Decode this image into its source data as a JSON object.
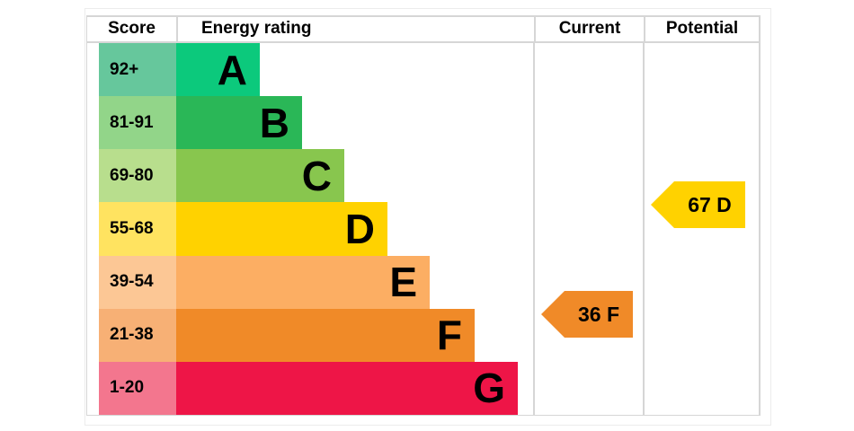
{
  "header": {
    "score": "Score",
    "energy_rating": "Energy rating",
    "current": "Current",
    "potential": "Potential"
  },
  "bands": [
    {
      "score": "92+",
      "grade": "A",
      "bar_color": "#0cc97c",
      "score_cell_color": "#66c79c"
    },
    {
      "score": "81-91",
      "grade": "B",
      "bar_color": "#2ab757",
      "score_cell_color": "#92d589"
    },
    {
      "score": "69-80",
      "grade": "C",
      "bar_color": "#88c64e",
      "score_cell_color": "#b8de8d"
    },
    {
      "score": "55-68",
      "grade": "D",
      "bar_color": "#ffd200",
      "score_cell_color": "#ffe360"
    },
    {
      "score": "39-54",
      "grade": "E",
      "bar_color": "#fcae63",
      "score_cell_color": "#fcc795"
    },
    {
      "score": "21-38",
      "grade": "F",
      "bar_color": "#f08a28",
      "score_cell_color": "#f7b075"
    },
    {
      "score": "1-20",
      "grade": "G",
      "bar_color": "#ee1547",
      "score_cell_color": "#f3768e"
    }
  ],
  "current": {
    "label": "36 F",
    "value": 36,
    "grade": "F",
    "color": "#f08a28"
  },
  "potential": {
    "label": "67 D",
    "value": 67,
    "grade": "D",
    "color": "#ffd200"
  },
  "border_color": "#d6d6d6",
  "chart_data": {
    "type": "bar",
    "title": "EPC energy rating chart",
    "categories": [
      "A",
      "B",
      "C",
      "D",
      "E",
      "F",
      "G"
    ],
    "score_ranges": [
      "92+",
      "81-91",
      "69-80",
      "55-68",
      "39-54",
      "21-38",
      "1-20"
    ],
    "values": [
      93,
      140,
      187,
      235,
      282,
      332,
      380
    ],
    "values_unit": "bar length px (stepped design, not data-driven)",
    "series": [
      {
        "name": "Current",
        "value": 36,
        "rating": "F"
      },
      {
        "name": "Potential",
        "value": 67,
        "rating": "D"
      }
    ],
    "columns": [
      "Score",
      "Energy rating",
      "Current",
      "Potential"
    ],
    "legend_position": "none",
    "grid": false
  }
}
